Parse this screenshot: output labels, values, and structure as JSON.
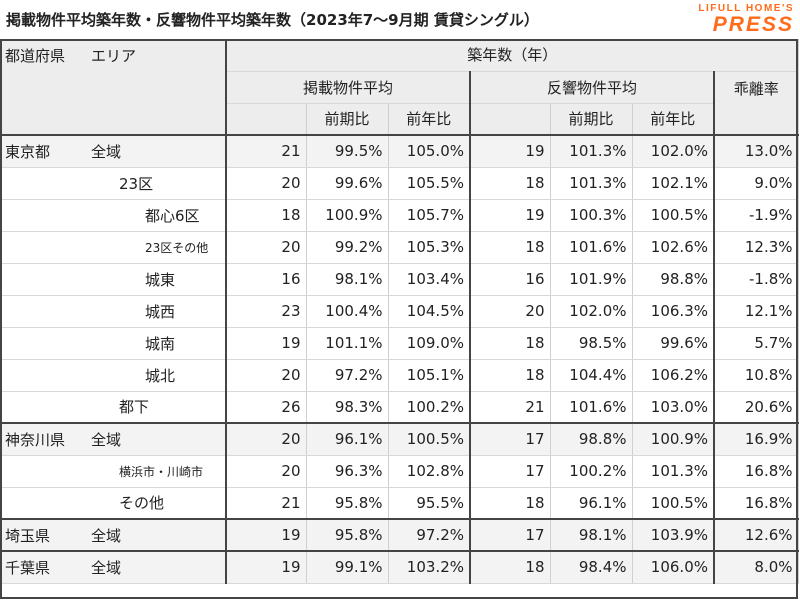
{
  "title": "掲載物件平均築年数・反響物件平均築年数（2023年7～9月期 賃貸シングル）",
  "logo": {
    "top": "LIFULL HOME'S",
    "bottom": "PRESS"
  },
  "headers": {
    "pref": "都道府県",
    "area": "エリア",
    "age": "築年数（年）",
    "listed": "掲載物件平均",
    "responded": "反響物件平均",
    "gap": "乖離率",
    "qoq": "前期比",
    "yoy": "前年比"
  },
  "rows": [
    {
      "pref": "東京都",
      "area": "全域",
      "level": 0,
      "la": "21",
      "lq": "99.5%",
      "ly": "105.0%",
      "ra": "19",
      "rq": "101.3%",
      "ry": "102.0%",
      "gap": "13.0%"
    },
    {
      "pref": "",
      "area": "23区",
      "level": 1,
      "la": "20",
      "lq": "99.6%",
      "ly": "105.5%",
      "ra": "18",
      "rq": "101.3%",
      "ry": "102.1%",
      "gap": "9.0%"
    },
    {
      "pref": "",
      "area": "都心6区",
      "level": 2,
      "la": "18",
      "lq": "100.9%",
      "ly": "105.7%",
      "ra": "19",
      "rq": "100.3%",
      "ry": "100.5%",
      "gap": "-1.9%"
    },
    {
      "pref": "",
      "area": "23区その他",
      "level": 2,
      "small": true,
      "la": "20",
      "lq": "99.2%",
      "ly": "105.3%",
      "ra": "18",
      "rq": "101.6%",
      "ry": "102.6%",
      "gap": "12.3%"
    },
    {
      "pref": "",
      "area": "城東",
      "level": 2,
      "la": "16",
      "lq": "98.1%",
      "ly": "103.4%",
      "ra": "16",
      "rq": "101.9%",
      "ry": "98.8%",
      "gap": "-1.8%"
    },
    {
      "pref": "",
      "area": "城西",
      "level": 2,
      "la": "23",
      "lq": "100.4%",
      "ly": "104.5%",
      "ra": "20",
      "rq": "102.0%",
      "ry": "106.3%",
      "gap": "12.1%"
    },
    {
      "pref": "",
      "area": "城南",
      "level": 2,
      "la": "19",
      "lq": "101.1%",
      "ly": "109.0%",
      "ra": "18",
      "rq": "98.5%",
      "ry": "99.6%",
      "gap": "5.7%"
    },
    {
      "pref": "",
      "area": "城北",
      "level": 2,
      "la": "20",
      "lq": "97.2%",
      "ly": "105.1%",
      "ra": "18",
      "rq": "104.4%",
      "ry": "106.2%",
      "gap": "10.8%"
    },
    {
      "pref": "",
      "area": "都下",
      "level": 1,
      "la": "26",
      "lq": "98.3%",
      "ly": "100.2%",
      "ra": "21",
      "rq": "101.6%",
      "ry": "103.0%",
      "gap": "20.6%"
    },
    {
      "pref": "神奈川県",
      "area": "全域",
      "level": 0,
      "la": "20",
      "lq": "96.1%",
      "ly": "100.5%",
      "ra": "17",
      "rq": "98.8%",
      "ry": "100.9%",
      "gap": "16.9%"
    },
    {
      "pref": "",
      "area": "横浜市・川崎市",
      "level": 1,
      "small": true,
      "la": "20",
      "lq": "96.3%",
      "ly": "102.8%",
      "ra": "17",
      "rq": "100.2%",
      "ry": "101.3%",
      "gap": "16.8%"
    },
    {
      "pref": "",
      "area": "その他",
      "level": 1,
      "la": "21",
      "lq": "95.8%",
      "ly": "95.5%",
      "ra": "18",
      "rq": "96.1%",
      "ry": "100.5%",
      "gap": "16.8%"
    },
    {
      "pref": "埼玉県",
      "area": "全域",
      "level": 0,
      "la": "19",
      "lq": "95.8%",
      "ly": "97.2%",
      "ra": "17",
      "rq": "98.1%",
      "ry": "103.9%",
      "gap": "12.6%"
    },
    {
      "pref": "千葉県",
      "area": "全域",
      "level": 0,
      "la": "19",
      "lq": "99.1%",
      "ly": "103.2%",
      "ra": "18",
      "rq": "98.4%",
      "ry": "106.0%",
      "gap": "8.0%"
    }
  ]
}
